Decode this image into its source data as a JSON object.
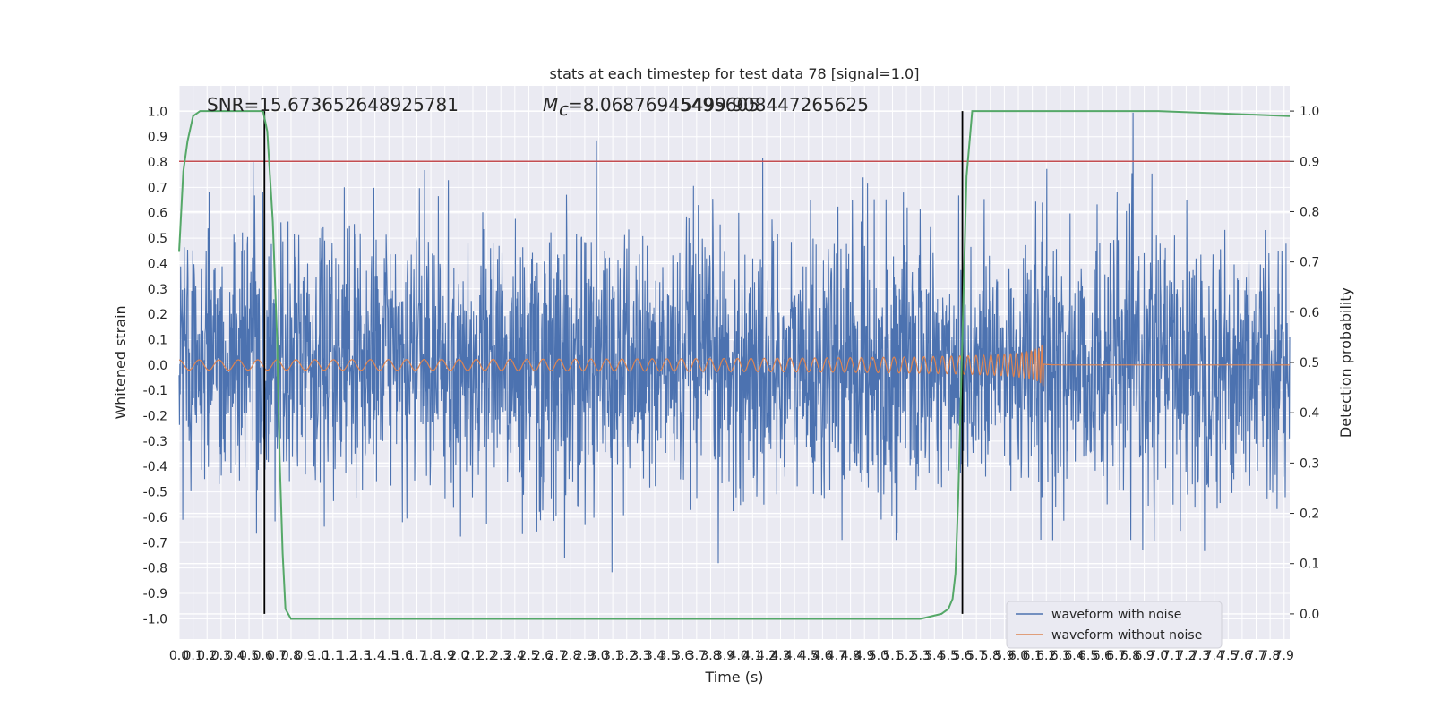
{
  "chart_data": {
    "type": "line",
    "title": "stats at each timestep for test data 78 [signal=1.0]",
    "xlabel": "Time (s)",
    "ylabel": "Whitened strain",
    "ylabel_right": "Detection probability",
    "xlim": [
      0.0,
      7.94
    ],
    "ylim": [
      -1.08,
      1.1
    ],
    "ylim_right": [
      -0.05,
      1.05
    ],
    "x_ticks": [
      "0.0",
      "0.1",
      "0.2",
      "0.3",
      "0.4",
      "0.5",
      "0.6",
      "0.7",
      "0.8",
      "0.9",
      "1.0",
      "1.1",
      "1.2",
      "1.3",
      "1.4",
      "1.5",
      "1.6",
      "1.7",
      "1.8",
      "1.9",
      "2.0",
      "2.1",
      "2.2",
      "2.3",
      "2.4",
      "2.5",
      "2.6",
      "2.7",
      "2.8",
      "2.9",
      "3.0",
      "3.1",
      "3.2",
      "3.3",
      "3.4",
      "3.5",
      "3.6",
      "3.7",
      "3.8",
      "3.9",
      "4.0",
      "4.1",
      "4.2",
      "4.3",
      "4.4",
      "4.5",
      "4.6",
      "4.7",
      "4.8",
      "4.9",
      "5.0",
      "5.1",
      "5.2",
      "5.3",
      "5.4",
      "5.5",
      "5.6",
      "5.7",
      "5.8",
      "5.9",
      "6.0",
      "6.1",
      "6.2",
      "6.3",
      "6.4",
      "6.5",
      "6.6",
      "6.7",
      "6.8",
      "6.9",
      "7.0",
      "7.1",
      "7.2",
      "7.3",
      "7.4",
      "7.5",
      "7.6",
      "7.7",
      "7.8",
      "7.9"
    ],
    "y_ticks": [
      "1.0",
      "0.9",
      "0.8",
      "0.7",
      "0.6",
      "0.5",
      "0.4",
      "0.3",
      "0.2",
      "0.1",
      "0.0",
      "-0.1",
      "-0.2",
      "-0.3",
      "-0.4",
      "-0.5",
      "-0.6",
      "-0.7",
      "-0.8",
      "-0.9",
      "-1.0"
    ],
    "y_ticks_right": [
      "1.0",
      "0.9",
      "0.8",
      "0.7",
      "0.6",
      "0.5",
      "0.4",
      "0.3",
      "0.2",
      "0.1",
      "0.0"
    ],
    "annotations": {
      "snr": "SNR=15.673652648925781",
      "mc": "=8.06876945495605",
      "mc_symbol": "M",
      "mc_sub": "c",
      "overlap": "5499.908447265625"
    },
    "threshold": 0.9,
    "vlines": [
      0.61,
      5.6
    ],
    "merger_time": 6.18,
    "series": [
      {
        "name": "waveform with noise",
        "color": "#4c72b0",
        "axis": "left"
      },
      {
        "name": "waveform without noise",
        "color": "#dd8452",
        "axis": "left"
      },
      {
        "name": "",
        "color": "#55a868",
        "axis": "right",
        "x": [
          0.0,
          0.03,
          0.06,
          0.1,
          0.15,
          0.2,
          0.3,
          0.4,
          0.5,
          0.6,
          0.63,
          0.67,
          0.7,
          0.72,
          0.74,
          0.76,
          0.8,
          0.85,
          1.0,
          2.0,
          3.0,
          3.5,
          4.0,
          5.0,
          5.3,
          5.45,
          5.5,
          5.53,
          5.55,
          5.57,
          5.6,
          5.63,
          5.67,
          5.8,
          7.0,
          7.94
        ],
        "values": [
          0.72,
          0.88,
          0.94,
          0.99,
          1.0,
          1.0,
          1.0,
          1.0,
          1.0,
          1.0,
          0.96,
          0.78,
          0.55,
          0.3,
          0.12,
          0.01,
          -0.01,
          -0.01,
          -0.01,
          -0.01,
          -0.01,
          -0.01,
          -0.01,
          -0.01,
          -0.01,
          0.0,
          0.01,
          0.03,
          0.08,
          0.23,
          0.55,
          0.87,
          1.0,
          1.0,
          1.0,
          0.99
        ]
      }
    ],
    "legend": {
      "placement": "lower-right"
    },
    "grid": true
  }
}
